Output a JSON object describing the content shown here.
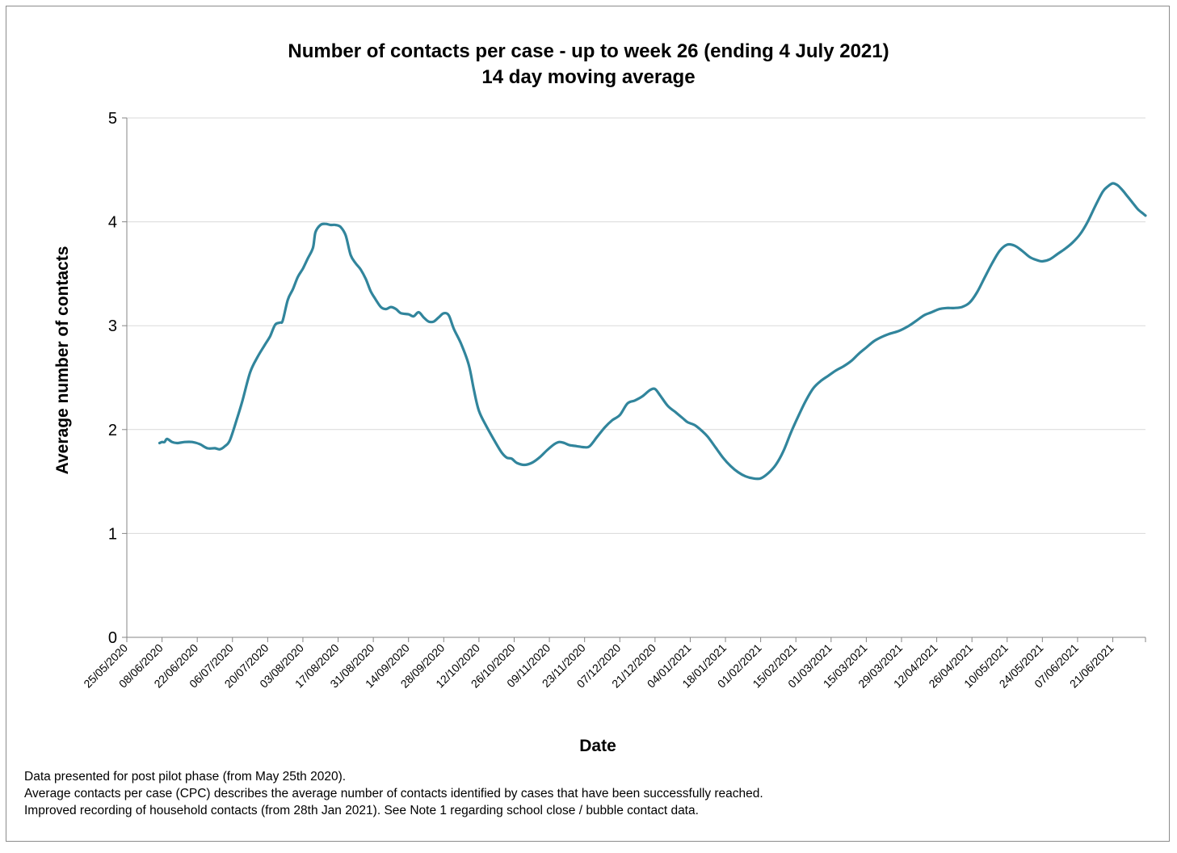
{
  "chart_data": {
    "type": "line",
    "title": "Number of contacts per case - up to week 26 (ending 4 July 2021)",
    "subtitle": "14 day moving average",
    "xlabel": "Date",
    "ylabel": "Average number of contacts",
    "ylim": [
      0,
      5
    ],
    "yticks": [
      "0",
      "1",
      "2",
      "3",
      "4",
      "5"
    ],
    "xlim": [
      "2020-05-25",
      "2021-07-04"
    ],
    "xtick_labels": [
      "25/05/2020",
      "08/06/2020",
      "22/06/2020",
      "06/07/2020",
      "20/07/2020",
      "03/08/2020",
      "17/08/2020",
      "31/08/2020",
      "14/09/2020",
      "28/09/2020",
      "12/10/2020",
      "26/10/2020",
      "09/11/2020",
      "23/11/2020",
      "07/12/2020",
      "21/12/2020",
      "04/01/2021",
      "18/01/2021",
      "01/02/2021",
      "15/02/2021",
      "01/03/2021",
      "15/03/2021",
      "29/03/2021",
      "12/04/2021",
      "26/04/2021",
      "10/05/2021",
      "24/05/2021",
      "07/06/2021",
      "21/06/2021"
    ],
    "grid": true,
    "legend": "none",
    "series": [
      {
        "color": "#31859c",
        "points": [
          [
            "2020-06-07",
            1.87
          ],
          [
            "2020-06-08",
            1.88
          ],
          [
            "2020-06-09",
            1.88
          ],
          [
            "2020-06-10",
            1.91
          ],
          [
            "2020-06-12",
            1.88
          ],
          [
            "2020-06-14",
            1.87
          ],
          [
            "2020-06-17",
            1.88
          ],
          [
            "2020-06-20",
            1.88
          ],
          [
            "2020-06-23",
            1.86
          ],
          [
            "2020-06-26",
            1.82
          ],
          [
            "2020-06-29",
            1.82
          ],
          [
            "2020-07-01",
            1.81
          ],
          [
            "2020-07-03",
            1.84
          ],
          [
            "2020-07-05",
            1.9
          ],
          [
            "2020-07-08",
            2.12
          ],
          [
            "2020-07-10",
            2.28
          ],
          [
            "2020-07-13",
            2.55
          ],
          [
            "2020-07-16",
            2.7
          ],
          [
            "2020-07-19",
            2.82
          ],
          [
            "2020-07-21",
            2.9
          ],
          [
            "2020-07-23",
            3.01
          ],
          [
            "2020-07-25",
            3.03
          ],
          [
            "2020-07-26",
            3.05
          ],
          [
            "2020-07-28",
            3.25
          ],
          [
            "2020-07-30",
            3.35
          ],
          [
            "2020-08-01",
            3.47
          ],
          [
            "2020-08-03",
            3.55
          ],
          [
            "2020-08-05",
            3.65
          ],
          [
            "2020-08-07",
            3.75
          ],
          [
            "2020-08-08",
            3.9
          ],
          [
            "2020-08-10",
            3.97
          ],
          [
            "2020-08-12",
            3.98
          ],
          [
            "2020-08-14",
            3.97
          ],
          [
            "2020-08-16",
            3.97
          ],
          [
            "2020-08-18",
            3.95
          ],
          [
            "2020-08-20",
            3.87
          ],
          [
            "2020-08-22",
            3.68
          ],
          [
            "2020-08-24",
            3.6
          ],
          [
            "2020-08-26",
            3.54
          ],
          [
            "2020-08-28",
            3.45
          ],
          [
            "2020-08-30",
            3.33
          ],
          [
            "2020-09-01",
            3.25
          ],
          [
            "2020-09-03",
            3.18
          ],
          [
            "2020-09-05",
            3.16
          ],
          [
            "2020-09-07",
            3.18
          ],
          [
            "2020-09-09",
            3.16
          ],
          [
            "2020-09-11",
            3.12
          ],
          [
            "2020-09-14",
            3.11
          ],
          [
            "2020-09-16",
            3.09
          ],
          [
            "2020-09-18",
            3.13
          ],
          [
            "2020-09-20",
            3.08
          ],
          [
            "2020-09-22",
            3.04
          ],
          [
            "2020-09-24",
            3.04
          ],
          [
            "2020-09-26",
            3.08
          ],
          [
            "2020-09-28",
            3.12
          ],
          [
            "2020-09-30",
            3.1
          ],
          [
            "2020-10-02",
            2.97
          ],
          [
            "2020-10-05",
            2.82
          ],
          [
            "2020-10-08",
            2.62
          ],
          [
            "2020-10-10",
            2.38
          ],
          [
            "2020-10-12",
            2.18
          ],
          [
            "2020-10-15",
            2.03
          ],
          [
            "2020-10-18",
            1.9
          ],
          [
            "2020-10-21",
            1.78
          ],
          [
            "2020-10-23",
            1.73
          ],
          [
            "2020-10-25",
            1.72
          ],
          [
            "2020-10-27",
            1.68
          ],
          [
            "2020-10-30",
            1.66
          ],
          [
            "2020-11-02",
            1.68
          ],
          [
            "2020-11-05",
            1.73
          ],
          [
            "2020-11-08",
            1.8
          ],
          [
            "2020-11-11",
            1.86
          ],
          [
            "2020-11-13",
            1.88
          ],
          [
            "2020-11-15",
            1.87
          ],
          [
            "2020-11-17",
            1.85
          ],
          [
            "2020-11-20",
            1.84
          ],
          [
            "2020-11-23",
            1.83
          ],
          [
            "2020-11-25",
            1.84
          ],
          [
            "2020-11-28",
            1.93
          ],
          [
            "2020-12-01",
            2.02
          ],
          [
            "2020-12-04",
            2.09
          ],
          [
            "2020-12-07",
            2.14
          ],
          [
            "2020-12-10",
            2.25
          ],
          [
            "2020-12-13",
            2.28
          ],
          [
            "2020-12-16",
            2.32
          ],
          [
            "2020-12-19",
            2.38
          ],
          [
            "2020-12-21",
            2.39
          ],
          [
            "2020-12-23",
            2.33
          ],
          [
            "2020-12-26",
            2.23
          ],
          [
            "2020-12-29",
            2.17
          ],
          [
            "2021-01-01",
            2.11
          ],
          [
            "2021-01-03",
            2.07
          ],
          [
            "2021-01-06",
            2.04
          ],
          [
            "2021-01-09",
            1.98
          ],
          [
            "2021-01-11",
            1.93
          ],
          [
            "2021-01-14",
            1.83
          ],
          [
            "2021-01-17",
            1.73
          ],
          [
            "2021-01-20",
            1.65
          ],
          [
            "2021-01-23",
            1.59
          ],
          [
            "2021-01-26",
            1.55
          ],
          [
            "2021-01-29",
            1.53
          ],
          [
            "2021-02-01",
            1.53
          ],
          [
            "2021-02-04",
            1.58
          ],
          [
            "2021-02-07",
            1.66
          ],
          [
            "2021-02-10",
            1.79
          ],
          [
            "2021-02-13",
            1.97
          ],
          [
            "2021-02-16",
            2.13
          ],
          [
            "2021-02-19",
            2.28
          ],
          [
            "2021-02-22",
            2.4
          ],
          [
            "2021-02-25",
            2.47
          ],
          [
            "2021-02-28",
            2.52
          ],
          [
            "2021-03-03",
            2.57
          ],
          [
            "2021-03-06",
            2.61
          ],
          [
            "2021-03-09",
            2.66
          ],
          [
            "2021-03-12",
            2.73
          ],
          [
            "2021-03-15",
            2.79
          ],
          [
            "2021-03-18",
            2.85
          ],
          [
            "2021-03-21",
            2.89
          ],
          [
            "2021-03-24",
            2.92
          ],
          [
            "2021-03-28",
            2.95
          ],
          [
            "2021-04-01",
            3.0
          ],
          [
            "2021-04-04",
            3.05
          ],
          [
            "2021-04-07",
            3.1
          ],
          [
            "2021-04-10",
            3.13
          ],
          [
            "2021-04-13",
            3.16
          ],
          [
            "2021-04-16",
            3.17
          ],
          [
            "2021-04-19",
            3.17
          ],
          [
            "2021-04-22",
            3.18
          ],
          [
            "2021-04-25",
            3.22
          ],
          [
            "2021-04-28",
            3.32
          ],
          [
            "2021-05-01",
            3.46
          ],
          [
            "2021-05-04",
            3.6
          ],
          [
            "2021-05-07",
            3.72
          ],
          [
            "2021-05-10",
            3.78
          ],
          [
            "2021-05-13",
            3.77
          ],
          [
            "2021-05-16",
            3.72
          ],
          [
            "2021-05-19",
            3.66
          ],
          [
            "2021-05-22",
            3.63
          ],
          [
            "2021-05-24",
            3.62
          ],
          [
            "2021-05-27",
            3.64
          ],
          [
            "2021-05-30",
            3.69
          ],
          [
            "2021-06-02",
            3.74
          ],
          [
            "2021-06-05",
            3.8
          ],
          [
            "2021-06-08",
            3.88
          ],
          [
            "2021-06-11",
            4.0
          ],
          [
            "2021-06-14",
            4.15
          ],
          [
            "2021-06-17",
            4.29
          ],
          [
            "2021-06-19",
            4.34
          ],
          [
            "2021-06-21",
            4.37
          ],
          [
            "2021-06-23",
            4.35
          ],
          [
            "2021-06-25",
            4.3
          ],
          [
            "2021-06-27",
            4.24
          ],
          [
            "2021-06-29",
            4.18
          ],
          [
            "2021-07-01",
            4.12
          ],
          [
            "2021-07-03",
            4.08
          ],
          [
            "2021-07-04",
            4.06
          ]
        ]
      }
    ]
  },
  "notes": [
    "Data presented  for post pilot phase (from May 25th 2020).",
    "Average contacts per case (CPC) describes the average number of contacts identified by cases that have been successfully reached.",
    "Improved recording of household contacts (from 28th Jan 2021). See Note 1 regarding school close / bubble contact data."
  ]
}
